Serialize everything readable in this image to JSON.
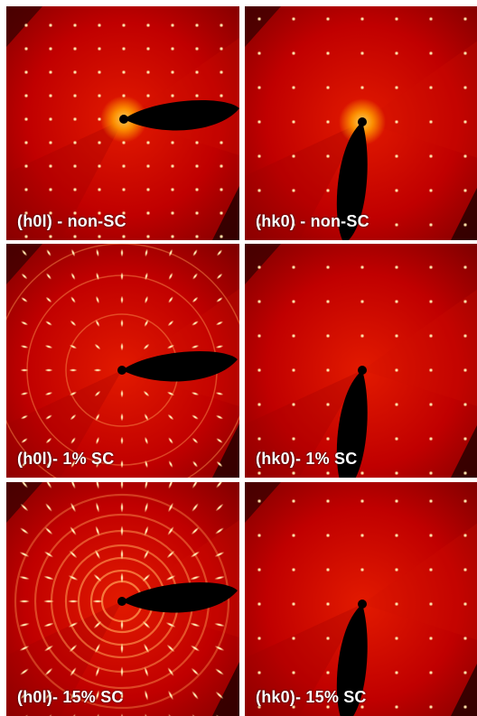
{
  "panels": [
    {
      "label": "(h0l) - non-SC"
    },
    {
      "label": "(hk0) - non-SC"
    },
    {
      "label": "(h0l)- 1% SC"
    },
    {
      "label": "(hk0)- 1% SC"
    },
    {
      "label": "(h0l)- 15% SC"
    },
    {
      "label": "(hk0)- 15% SC"
    }
  ],
  "colors": {
    "background": "#c00000",
    "spot": "#ffe0a0",
    "shadow": "#000000",
    "halo": "#ff9a00"
  }
}
